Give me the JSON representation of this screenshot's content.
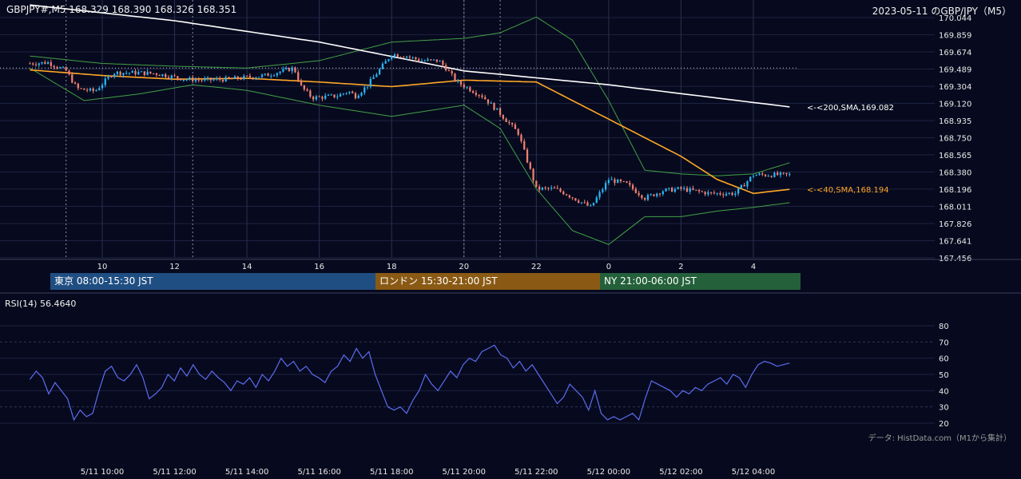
{
  "header": {
    "symbol_ohlc": "GBPJPY#,M5 168.329 168.390 168.326 168.351",
    "title_right": "2023-05-11 のGBP/JPY（M5）"
  },
  "colors": {
    "background": "#070a1e",
    "grid": "#1c2140",
    "candle_up": "#29b6f6",
    "candle_down": "#f08070",
    "sma200": "#ffffff",
    "sma40": "#ffa726",
    "bollinger": "#43a047",
    "rsi": "#5b6cf0",
    "session_tokyo": "#1f4e82",
    "session_london": "#8a5a14",
    "session_ny": "#24603a"
  },
  "sessions": [
    {
      "label": "東京 08:00-15:30 JST",
      "color": "#1f4e82"
    },
    {
      "label": "ロンドン 15:30-21:00 JST",
      "color": "#8a5a14"
    },
    {
      "label": "NY 21:00-06:00 JST",
      "color": "#24603a"
    }
  ],
  "rsi_label": "RSI(14) 56.4640",
  "attribution": "データ: HistData.com（M1から集計）",
  "chart_data": [
    {
      "type": "candlestick",
      "title": "2023-05-11 のGBP/JPY（M5）",
      "ylim": [
        167.456,
        170.044
      ],
      "y_ticks": [
        "170.044",
        "169.859",
        "169.674",
        "169.489",
        "169.304",
        "169.120",
        "168.935",
        "168.750",
        "168.565",
        "168.380",
        "168.196",
        "168.011",
        "167.826",
        "167.641",
        "167.456"
      ],
      "x_ticks": [
        {
          "label": "10",
          "hour": 10
        },
        {
          "label": "12",
          "hour": 12
        },
        {
          "label": "14",
          "hour": 14
        },
        {
          "label": "16",
          "hour": 16
        },
        {
          "label": "18",
          "hour": 18
        },
        {
          "label": "20",
          "hour": 20
        },
        {
          "label": "22",
          "hour": 22
        },
        {
          "label": "0",
          "hour": 24
        },
        {
          "label": "2",
          "hour": 26
        },
        {
          "label": "4",
          "hour": 28
        }
      ],
      "x_range_hours": [
        8.0,
        33.0
      ],
      "reference_line": 169.5,
      "session_boundaries_hours": [
        9.0,
        12.5,
        20.0,
        21.0
      ],
      "annotations": [
        {
          "text": "<-<200,SMA,169.082",
          "value": 169.082,
          "color": "#ffffff"
        },
        {
          "text": "<-<40,SMA,168.194",
          "value": 168.194,
          "color": "#ffa726"
        }
      ],
      "close_anchors": [
        [
          8.0,
          169.55
        ],
        [
          8.5,
          169.56
        ],
        [
          9.0,
          169.47
        ],
        [
          9.3,
          169.28
        ],
        [
          9.8,
          169.25
        ],
        [
          10.3,
          169.45
        ],
        [
          11.0,
          169.45
        ],
        [
          11.5,
          169.44
        ],
        [
          12.3,
          169.38
        ],
        [
          12.8,
          169.37
        ],
        [
          13.5,
          169.38
        ],
        [
          14.5,
          169.42
        ],
        [
          15.3,
          169.5
        ],
        [
          15.5,
          169.3
        ],
        [
          15.8,
          169.18
        ],
        [
          16.5,
          169.2
        ],
        [
          16.8,
          169.25
        ],
        [
          17.0,
          169.2
        ],
        [
          17.3,
          169.3
        ],
        [
          17.6,
          169.45
        ],
        [
          18.0,
          169.65
        ],
        [
          18.4,
          169.63
        ],
        [
          18.8,
          169.58
        ],
        [
          19.3,
          169.58
        ],
        [
          19.5,
          169.5
        ],
        [
          19.8,
          169.35
        ],
        [
          20.5,
          169.2
        ],
        [
          20.9,
          169.05
        ],
        [
          21.5,
          168.8
        ],
        [
          22.0,
          168.2
        ],
        [
          22.5,
          168.2
        ],
        [
          22.8,
          168.15
        ],
        [
          23.5,
          168.0
        ],
        [
          24.0,
          168.3
        ],
        [
          24.5,
          168.25
        ],
        [
          25.0,
          168.1
        ],
        [
          25.5,
          168.18
        ],
        [
          26.0,
          168.2
        ],
        [
          26.8,
          168.15
        ],
        [
          27.5,
          168.15
        ],
        [
          28.0,
          168.35
        ],
        [
          29.0,
          168.35
        ]
      ],
      "sma200_anchors": [
        [
          8.0,
          170.18
        ],
        [
          12.0,
          170.01
        ],
        [
          16.0,
          169.78
        ],
        [
          20.0,
          169.47
        ],
        [
          24.0,
          169.32
        ],
        [
          29.0,
          169.082
        ]
      ],
      "sma40_anchors": [
        [
          8.0,
          169.48
        ],
        [
          10.0,
          169.42
        ],
        [
          12.0,
          169.38
        ],
        [
          14.0,
          169.39
        ],
        [
          16.0,
          169.35
        ],
        [
          18.0,
          169.3
        ],
        [
          20.0,
          169.37
        ],
        [
          22.0,
          169.35
        ],
        [
          24.0,
          168.95
        ],
        [
          26.0,
          168.55
        ],
        [
          27.0,
          168.3
        ],
        [
          28.0,
          168.15
        ],
        [
          29.0,
          168.194
        ]
      ],
      "bb_upper_anchors": [
        [
          8.0,
          169.63
        ],
        [
          10.0,
          169.55
        ],
        [
          12.0,
          169.52
        ],
        [
          14.0,
          169.5
        ],
        [
          16.0,
          169.58
        ],
        [
          18.0,
          169.78
        ],
        [
          20.0,
          169.82
        ],
        [
          21.0,
          169.88
        ],
        [
          22.0,
          170.05
        ],
        [
          23.0,
          169.8
        ],
        [
          24.0,
          169.15
        ],
        [
          25.0,
          168.4
        ],
        [
          26.0,
          168.36
        ],
        [
          27.0,
          168.34
        ],
        [
          28.0,
          168.36
        ],
        [
          29.0,
          168.48
        ]
      ],
      "bb_lower_anchors": [
        [
          8.0,
          169.5
        ],
        [
          9.5,
          169.15
        ],
        [
          11.0,
          169.22
        ],
        [
          12.5,
          169.32
        ],
        [
          14.0,
          169.26
        ],
        [
          16.0,
          169.1
        ],
        [
          18.0,
          168.98
        ],
        [
          20.0,
          169.1
        ],
        [
          21.0,
          168.85
        ],
        [
          22.0,
          168.2
        ],
        [
          23.0,
          167.75
        ],
        [
          24.0,
          167.6
        ],
        [
          25.0,
          167.9
        ],
        [
          26.0,
          167.9
        ],
        [
          27.0,
          167.96
        ],
        [
          28.0,
          168.0
        ],
        [
          29.0,
          168.05
        ]
      ]
    },
    {
      "type": "line",
      "title": "RSI(14) 56.4640",
      "ylim": [
        20,
        80
      ],
      "y_ticks": [
        80,
        70,
        60,
        50,
        40,
        30,
        20
      ],
      "x_range_hours": [
        8.0,
        33.0
      ],
      "x_ticks": [
        {
          "label": "5/11 10:00",
          "hour": 10
        },
        {
          "label": "5/11 12:00",
          "hour": 12
        },
        {
          "label": "5/11 14:00",
          "hour": 14
        },
        {
          "label": "5/11 16:00",
          "hour": 16
        },
        {
          "label": "5/11 18:00",
          "hour": 18
        },
        {
          "label": "5/11 20:00",
          "hour": 20
        },
        {
          "label": "5/11 22:00",
          "hour": 22
        },
        {
          "label": "5/12 00:00",
          "hour": 24
        },
        {
          "label": "5/12 02:00",
          "hour": 26
        },
        {
          "label": "5/12 04:00",
          "hour": 28
        }
      ],
      "values": [
        47,
        52,
        48,
        38,
        45,
        40,
        35,
        22,
        28,
        24,
        26,
        40,
        52,
        55,
        48,
        46,
        50,
        56,
        48,
        35,
        38,
        42,
        50,
        46,
        54,
        49,
        56,
        50,
        47,
        52,
        48,
        45,
        40,
        46,
        44,
        48,
        42,
        50,
        46,
        52,
        60,
        55,
        58,
        52,
        55,
        50,
        48,
        45,
        52,
        55,
        62,
        58,
        66,
        60,
        64,
        50,
        40,
        30,
        28,
        30,
        26,
        34,
        40,
        50,
        44,
        40,
        46,
        52,
        48,
        56,
        60,
        58,
        64,
        66,
        68,
        62,
        60,
        54,
        58,
        52,
        56,
        50,
        44,
        38,
        32,
        36,
        44,
        40,
        36,
        28,
        40,
        26,
        22,
        24,
        22,
        24,
        26,
        22,
        35,
        46,
        44,
        42,
        40,
        36,
        40,
        38,
        42,
        40,
        44,
        46,
        48,
        44,
        50,
        48,
        42,
        50,
        56,
        58,
        57,
        55,
        56,
        57
      ],
      "reference_lines": [
        70,
        30
      ]
    }
  ]
}
